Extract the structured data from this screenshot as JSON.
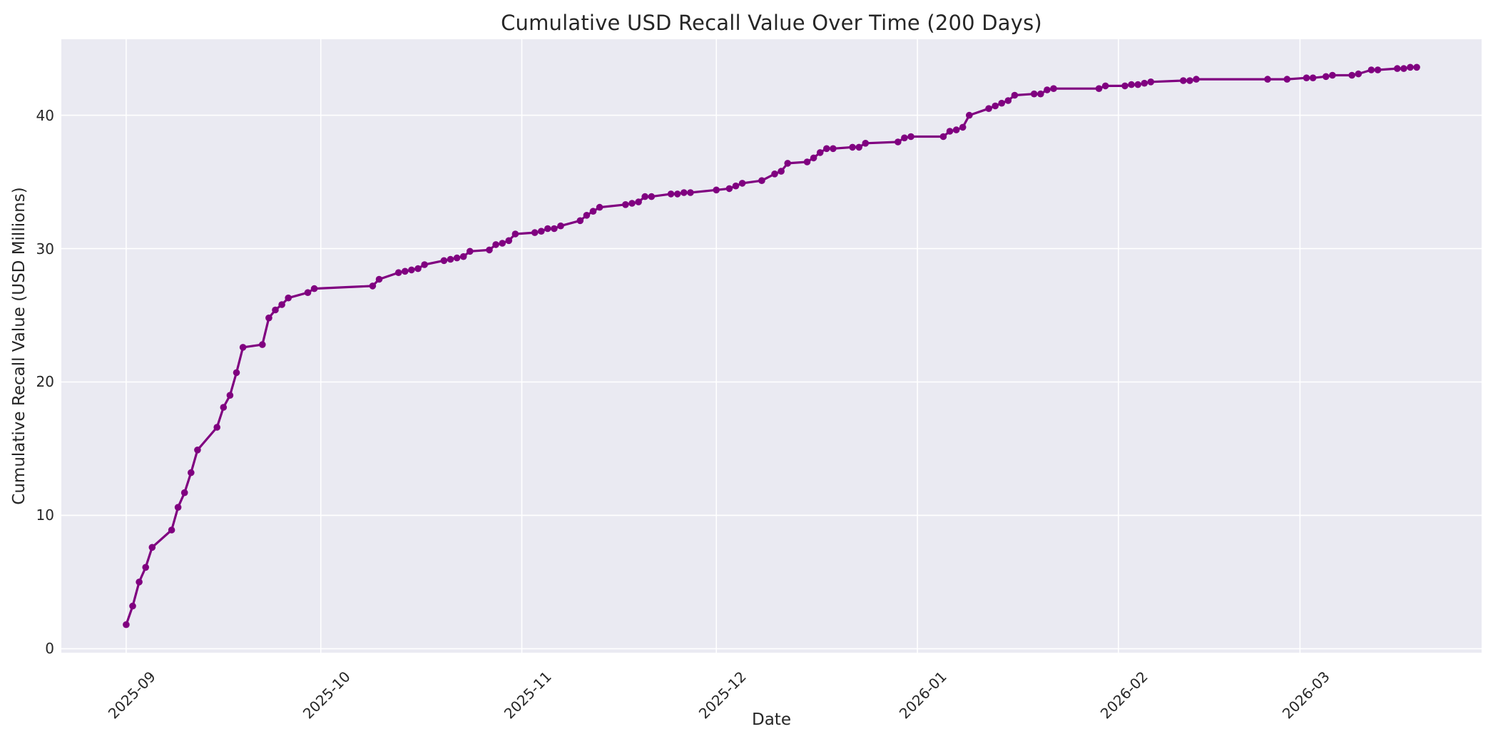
{
  "figure": {
    "title": "Cumulative USD Recall Value Over Time (200 Days)",
    "xlabel": "Date",
    "ylabel": "Cumulative Recall Value (USD Millions)"
  },
  "colors": {
    "figure_background": "#ffffff",
    "axes_background": "#eaeaf2",
    "gridline": "#ffffff",
    "line": "#800080",
    "marker": "#800080",
    "text": "#262626"
  },
  "chart_data": {
    "type": "line",
    "title": "Cumulative USD Recall Value Over Time (200 Days)",
    "xlabel": "Date",
    "ylabel": "Cumulative Recall Value (USD Millions)",
    "grid": true,
    "legend": false,
    "marker_style": "circle",
    "line_color": "#800080",
    "xlim": [
      "2025-08-22",
      "2026-03-29"
    ],
    "ylim": [
      -0.3,
      45.7
    ],
    "y_ticks": [
      0,
      10,
      20,
      30,
      40
    ],
    "x_ticks": [
      {
        "label": "2025-09",
        "date": "2025-09-01"
      },
      {
        "label": "2025-10",
        "date": "2025-10-01"
      },
      {
        "label": "2025-11",
        "date": "2025-11-01"
      },
      {
        "label": "2025-12",
        "date": "2025-12-01"
      },
      {
        "label": "2026-01",
        "date": "2026-01-01"
      },
      {
        "label": "2026-02",
        "date": "2026-02-01"
      },
      {
        "label": "2026-03",
        "date": "2026-03-01"
      }
    ],
    "series": [
      {
        "name": "Cumulative USD Recall Value",
        "points": [
          [
            "2025-09-01",
            1.8
          ],
          [
            "2025-09-02",
            3.2
          ],
          [
            "2025-09-03",
            5.0
          ],
          [
            "2025-09-04",
            6.1
          ],
          [
            "2025-09-05",
            7.6
          ],
          [
            "2025-09-08",
            8.9
          ],
          [
            "2025-09-09",
            10.6
          ],
          [
            "2025-09-10",
            11.7
          ],
          [
            "2025-09-11",
            13.2
          ],
          [
            "2025-09-12",
            14.9
          ],
          [
            "2025-09-15",
            16.6
          ],
          [
            "2025-09-16",
            18.1
          ],
          [
            "2025-09-17",
            19.0
          ],
          [
            "2025-09-18",
            20.7
          ],
          [
            "2025-09-19",
            22.6
          ],
          [
            "2025-09-22",
            22.8
          ],
          [
            "2025-09-23",
            24.8
          ],
          [
            "2025-09-24",
            25.4
          ],
          [
            "2025-09-25",
            25.8
          ],
          [
            "2025-09-26",
            26.3
          ],
          [
            "2025-09-29",
            26.7
          ],
          [
            "2025-09-30",
            27.0
          ],
          [
            "2025-10-09",
            27.2
          ],
          [
            "2025-10-10",
            27.7
          ],
          [
            "2025-10-13",
            28.2
          ],
          [
            "2025-10-14",
            28.3
          ],
          [
            "2025-10-15",
            28.4
          ],
          [
            "2025-10-16",
            28.5
          ],
          [
            "2025-10-17",
            28.8
          ],
          [
            "2025-10-20",
            29.1
          ],
          [
            "2025-10-21",
            29.2
          ],
          [
            "2025-10-22",
            29.3
          ],
          [
            "2025-10-23",
            29.4
          ],
          [
            "2025-10-24",
            29.8
          ],
          [
            "2025-10-27",
            29.9
          ],
          [
            "2025-10-28",
            30.3
          ],
          [
            "2025-10-29",
            30.4
          ],
          [
            "2025-10-30",
            30.6
          ],
          [
            "2025-10-31",
            31.1
          ],
          [
            "2025-11-03",
            31.2
          ],
          [
            "2025-11-04",
            31.3
          ],
          [
            "2025-11-05",
            31.5
          ],
          [
            "2025-11-06",
            31.5
          ],
          [
            "2025-11-07",
            31.7
          ],
          [
            "2025-11-10",
            32.1
          ],
          [
            "2025-11-11",
            32.5
          ],
          [
            "2025-11-12",
            32.8
          ],
          [
            "2025-11-13",
            33.1
          ],
          [
            "2025-11-17",
            33.3
          ],
          [
            "2025-11-18",
            33.4
          ],
          [
            "2025-11-19",
            33.5
          ],
          [
            "2025-11-20",
            33.9
          ],
          [
            "2025-11-21",
            33.9
          ],
          [
            "2025-11-24",
            34.1
          ],
          [
            "2025-11-25",
            34.1
          ],
          [
            "2025-11-26",
            34.2
          ],
          [
            "2025-11-27",
            34.2
          ],
          [
            "2025-12-01",
            34.4
          ],
          [
            "2025-12-03",
            34.5
          ],
          [
            "2025-12-04",
            34.7
          ],
          [
            "2025-12-05",
            34.9
          ],
          [
            "2025-12-08",
            35.1
          ],
          [
            "2025-12-10",
            35.6
          ],
          [
            "2025-12-11",
            35.8
          ],
          [
            "2025-12-12",
            36.4
          ],
          [
            "2025-12-15",
            36.5
          ],
          [
            "2025-12-16",
            36.8
          ],
          [
            "2025-12-17",
            37.2
          ],
          [
            "2025-12-18",
            37.5
          ],
          [
            "2025-12-19",
            37.5
          ],
          [
            "2025-12-22",
            37.6
          ],
          [
            "2025-12-23",
            37.6
          ],
          [
            "2025-12-24",
            37.9
          ],
          [
            "2025-12-29",
            38.0
          ],
          [
            "2025-12-30",
            38.3
          ],
          [
            "2025-12-31",
            38.4
          ],
          [
            "2026-01-05",
            38.4
          ],
          [
            "2026-01-06",
            38.8
          ],
          [
            "2026-01-07",
            38.9
          ],
          [
            "2026-01-08",
            39.1
          ],
          [
            "2026-01-09",
            40.0
          ],
          [
            "2026-01-12",
            40.5
          ],
          [
            "2026-01-13",
            40.7
          ],
          [
            "2026-01-14",
            40.9
          ],
          [
            "2026-01-15",
            41.1
          ],
          [
            "2026-01-16",
            41.5
          ],
          [
            "2026-01-19",
            41.6
          ],
          [
            "2026-01-20",
            41.6
          ],
          [
            "2026-01-21",
            41.9
          ],
          [
            "2026-01-22",
            42.0
          ],
          [
            "2026-01-29",
            42.0
          ],
          [
            "2026-01-30",
            42.2
          ],
          [
            "2026-02-02",
            42.2
          ],
          [
            "2026-02-03",
            42.3
          ],
          [
            "2026-02-04",
            42.3
          ],
          [
            "2026-02-05",
            42.4
          ],
          [
            "2026-02-06",
            42.5
          ],
          [
            "2026-02-11",
            42.6
          ],
          [
            "2026-02-12",
            42.6
          ],
          [
            "2026-02-13",
            42.7
          ],
          [
            "2026-02-24",
            42.7
          ],
          [
            "2026-02-27",
            42.7
          ],
          [
            "2026-03-02",
            42.8
          ],
          [
            "2026-03-03",
            42.8
          ],
          [
            "2026-03-05",
            42.9
          ],
          [
            "2026-03-06",
            43.0
          ],
          [
            "2026-03-09",
            43.0
          ],
          [
            "2026-03-10",
            43.1
          ],
          [
            "2026-03-12",
            43.4
          ],
          [
            "2026-03-13",
            43.4
          ],
          [
            "2026-03-16",
            43.5
          ],
          [
            "2026-03-17",
            43.5
          ],
          [
            "2026-03-18",
            43.6
          ],
          [
            "2026-03-19",
            43.6
          ]
        ]
      }
    ]
  }
}
